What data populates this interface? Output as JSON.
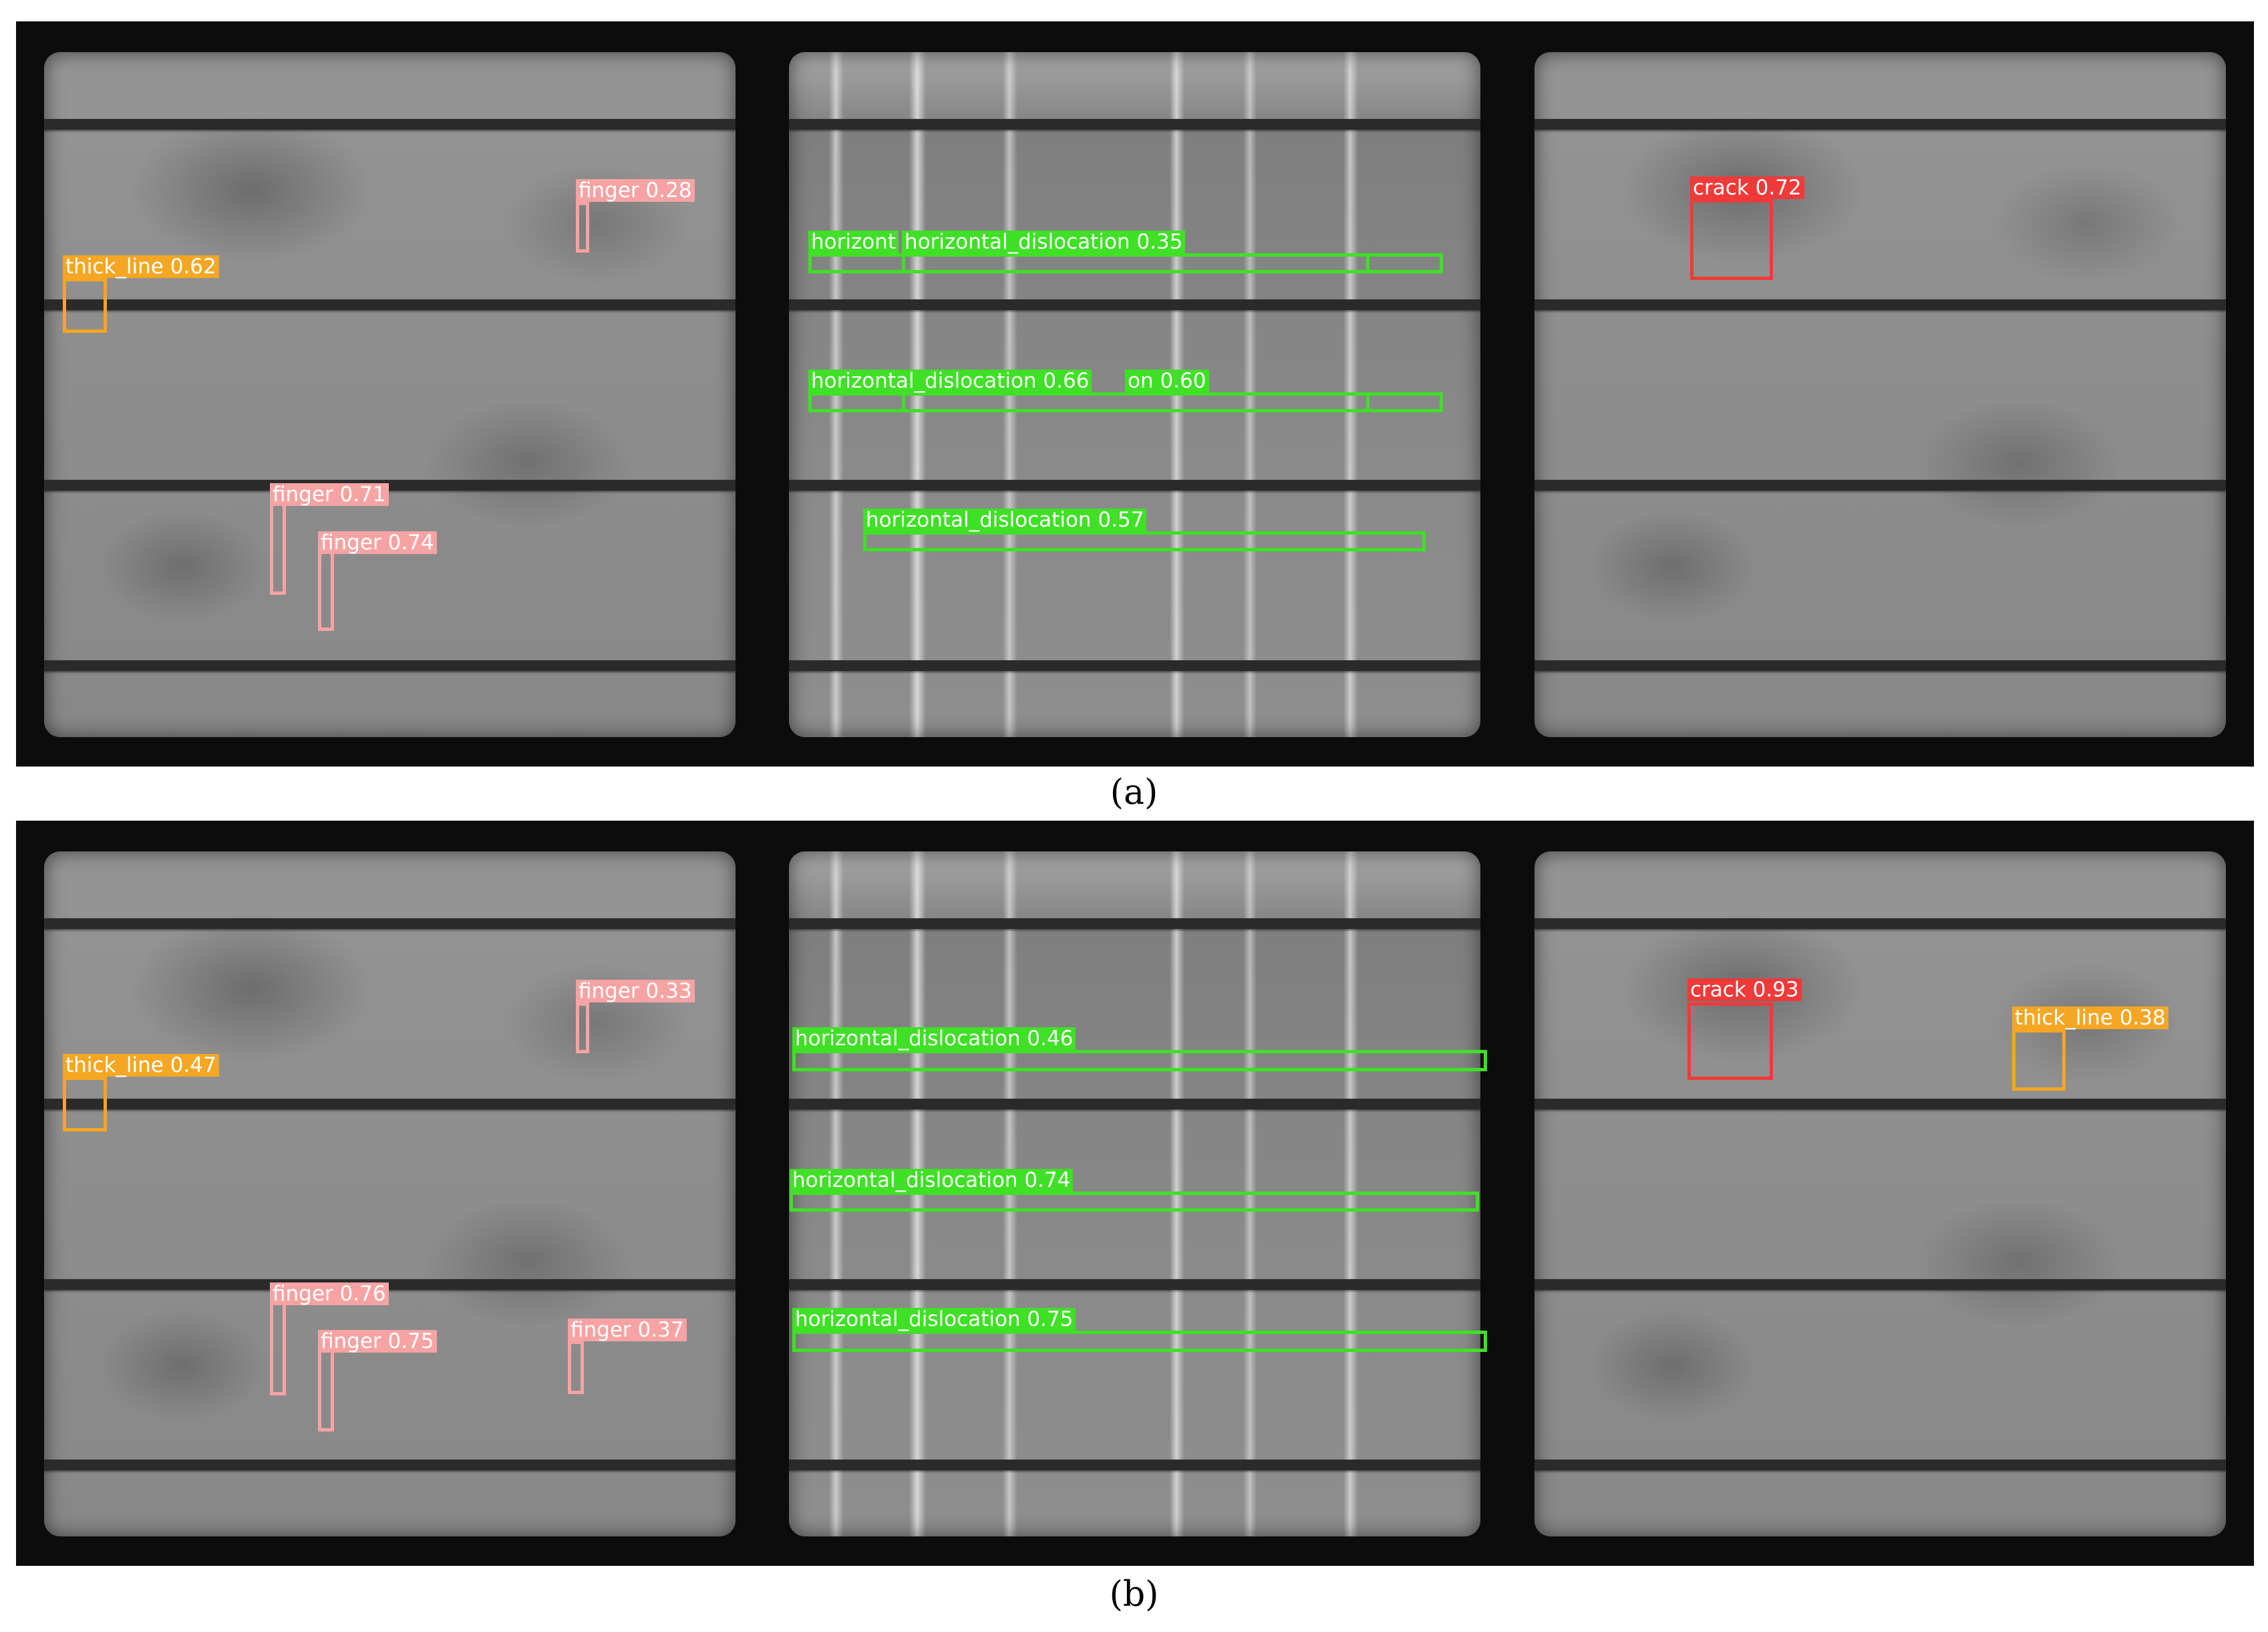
{
  "colors": {
    "thick_line": "#f5a623",
    "finger": "#f7a3a3",
    "horizontal_dislocation": "#3fe026",
    "crack": "#f03a3a"
  },
  "panels": [
    {
      "caption": "(a)",
      "detections": [
        {
          "class": "thick_line",
          "text": "thick_line  0.62"
        },
        {
          "class": "finger",
          "text": "finger  0.28"
        },
        {
          "class": "finger",
          "text": "finger  0.71"
        },
        {
          "class": "finger",
          "text": "finger  0.74"
        },
        {
          "class": "horizontal_dislocation",
          "text": "horizont"
        },
        {
          "class": "horizontal_dislocation",
          "text": "horizontal_dislocation  0.35"
        },
        {
          "class": "horizontal_dislocation",
          "text": "horizontal_dislocation  0.66"
        },
        {
          "class": "horizontal_dislocation",
          "text": "on  0.60"
        },
        {
          "class": "horizontal_dislocation",
          "text": "horizontal_dislocation  0.57"
        },
        {
          "class": "crack",
          "text": "crack  0.72"
        }
      ]
    },
    {
      "caption": "(b)",
      "detections": [
        {
          "class": "thick_line",
          "text": "thick_line  0.47"
        },
        {
          "class": "finger",
          "text": "finger  0.33"
        },
        {
          "class": "finger",
          "text": "finger  0.76"
        },
        {
          "class": "finger",
          "text": "finger  0.75"
        },
        {
          "class": "finger",
          "text": "finger  0.37"
        },
        {
          "class": "horizontal_dislocation",
          "text": "horizontal_dislocation  0.46"
        },
        {
          "class": "horizontal_dislocation",
          "text": "horizontal_dislocation  0.74"
        },
        {
          "class": "horizontal_dislocation",
          "text": "horizontal_dislocation  0.75"
        },
        {
          "class": "crack",
          "text": "crack  0.93"
        },
        {
          "class": "thick_line",
          "text": "thick_line  0.38"
        }
      ]
    }
  ]
}
